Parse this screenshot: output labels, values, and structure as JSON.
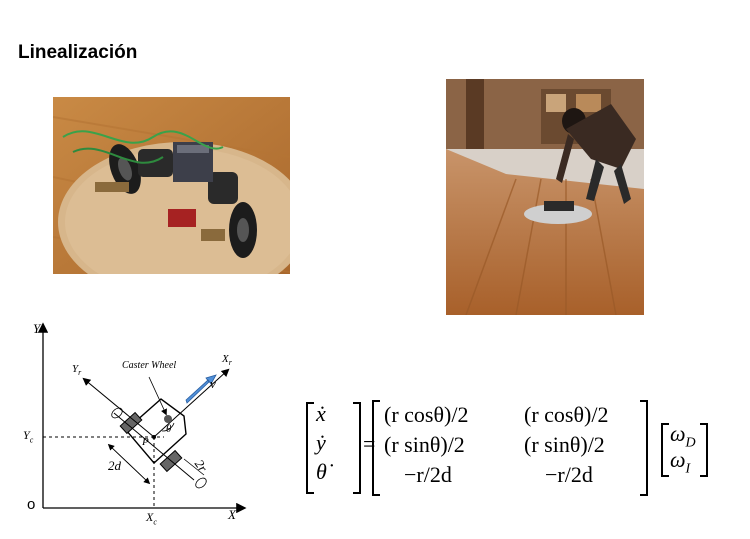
{
  "slide": {
    "title": "Linealización"
  },
  "photos": {
    "robot_chassis": {
      "alt": "robot-chassis-photo"
    },
    "robot_floor": {
      "alt": "person-with-robot-photo"
    }
  },
  "diagram": {
    "y_axis": "Y",
    "x_axis": "X",
    "origin": "o",
    "yc": "Y",
    "yc_sub": "c",
    "xc": "X",
    "xc_sub": "c",
    "yr": "Y",
    "yr_sub": "r",
    "xr": "X",
    "xr_sub": "r",
    "caster": "Caster Wheel",
    "v": "v",
    "theta": "θ",
    "p": "P",
    "two_d": "2d",
    "two_r": "2r"
  },
  "equation": {
    "lhs": [
      "ẋ",
      "ẏ",
      "θ̇"
    ],
    "equals": "=",
    "matrix": [
      [
        "(r cosθ)/2",
        "(r cosθ)/2"
      ],
      [
        "(r sinθ)/2",
        "(r sinθ)/2"
      ],
      [
        "−r/2d",
        "−r/2d"
      ]
    ],
    "rhs": [
      {
        "sym": "ω",
        "sub": "D"
      },
      {
        "sym": "ω",
        "sub": "I"
      }
    ]
  }
}
